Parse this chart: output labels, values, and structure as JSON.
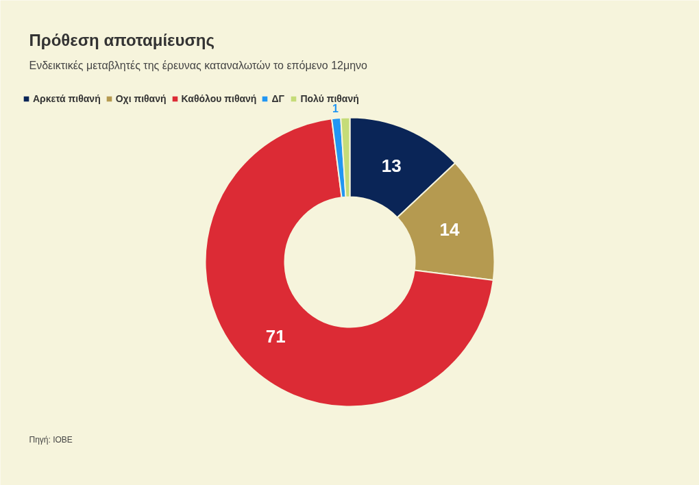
{
  "chart_data": {
    "type": "donut",
    "title": "Πρόθεση αποταμίευσης",
    "subtitle": "Ενδεικτικές μεταβλητές της έρευνας καταναλωτών το επόμενο 12μηνο",
    "categories": [
      "Αρκετά πιθανή",
      "Οχι πιθανή",
      "Καθόλου πιθανή",
      "ΔΓ",
      "Πολύ πιθανή"
    ],
    "values": [
      13,
      14,
      71,
      1,
      1
    ],
    "colors": [
      "#0a2557",
      "#b59a50",
      "#dc2b35",
      "#2196f3",
      "#c5dc78"
    ],
    "value_labels": [
      "13",
      "14",
      "71",
      "1",
      null
    ],
    "legend": "top left",
    "annotations": [
      "Πηγή: IOBE"
    ]
  }
}
